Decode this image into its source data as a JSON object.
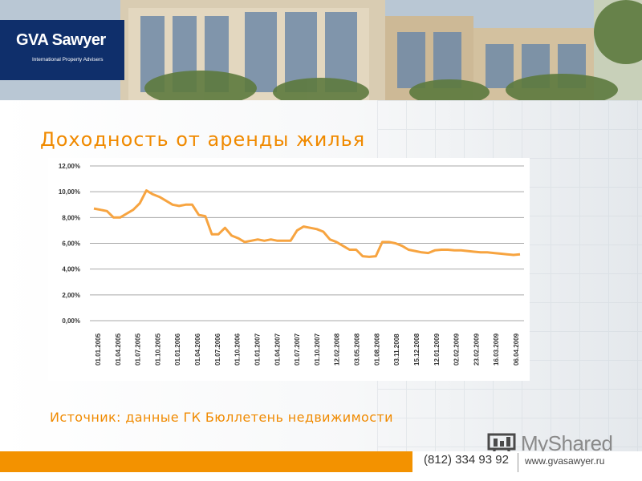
{
  "banner": {
    "logo_main": "GVA Sawyer",
    "logo_sub": "International Property Advisers"
  },
  "slide": {
    "title": "Доходность от аренды жилья",
    "source": "Источник: данные ГК Бюллетень недвижимости"
  },
  "watermark": {
    "text": "MyShared"
  },
  "footer": {
    "phone": "(812) 334 93 92",
    "url": "www.gvasawyer.ru"
  },
  "colors": {
    "accent": "#f39200",
    "line": "#f7a440",
    "logo_bg": "#0f2f6b"
  },
  "chart_data": {
    "type": "line",
    "title": "",
    "ylim": [
      0,
      12
    ],
    "y_ticks": [
      "0,00%",
      "2,00%",
      "4,00%",
      "6,00%",
      "8,00%",
      "10,00%",
      "12,00%"
    ],
    "x_tick_labels": [
      "01.01.2005",
      "01.04.2005",
      "01.07.2005",
      "01.10.2005",
      "01.01.2006",
      "01.04.2006",
      "01.07.2006",
      "01.10.2006",
      "01.01.2007",
      "01.04.2007",
      "01.07.2007",
      "01.10.2007",
      "12.02.2008",
      "03.05.2008",
      "01.08.2008",
      "03.11.2008",
      "15.12.2008",
      "12.01.2009",
      "02.02.2009",
      "23.02.2009",
      "16.03.2009",
      "06.04.2009"
    ],
    "grid": true,
    "series": [
      {
        "values": [
          8.7,
          8.6,
          8.5,
          8.0,
          8.0,
          8.3,
          8.6,
          9.1,
          10.1,
          9.8,
          9.6,
          9.3,
          9.0,
          8.9,
          9.0,
          9.0,
          8.2,
          8.1,
          6.7,
          6.7,
          7.2,
          6.6,
          6.4,
          6.1,
          6.2,
          6.3,
          6.2,
          6.3,
          6.2,
          6.2,
          6.2,
          7.0,
          7.3,
          7.2,
          7.1,
          6.9,
          6.3,
          6.1,
          5.8,
          5.5,
          5.5,
          5.0,
          4.95,
          5.0,
          6.1,
          6.1,
          6.0,
          5.8,
          5.5,
          5.4,
          5.3,
          5.25,
          5.45,
          5.5,
          5.5,
          5.45,
          5.45,
          5.4,
          5.35,
          5.3,
          5.3,
          5.25,
          5.2,
          5.15,
          5.1,
          5.15
        ]
      }
    ]
  }
}
